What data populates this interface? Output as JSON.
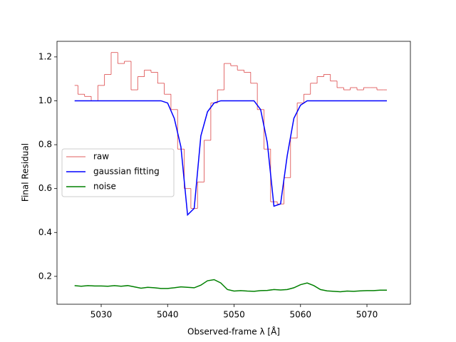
{
  "chart_data": {
    "type": "line",
    "xlabel": "Observed-frame λ [Å]",
    "ylabel": "Final Residual",
    "x": [
      5026,
      5027,
      5028,
      5029,
      5030,
      5031,
      5032,
      5033,
      5034,
      5035,
      5036,
      5037,
      5038,
      5039,
      5040,
      5041,
      5042,
      5043,
      5044,
      5045,
      5046,
      5047,
      5048,
      5049,
      5050,
      5051,
      5052,
      5053,
      5054,
      5055,
      5056,
      5057,
      5058,
      5059,
      5060,
      5061,
      5062,
      5063,
      5064,
      5065,
      5066,
      5067,
      5068,
      5069,
      5070,
      5071,
      5072,
      5073
    ],
    "series": [
      {
        "name": "raw",
        "color": "#d62728",
        "drawstyle": "steps-mid",
        "values": [
          1.07,
          1.03,
          1.02,
          1.0,
          1.07,
          1.12,
          1.22,
          1.17,
          1.18,
          1.05,
          1.11,
          1.14,
          1.13,
          1.08,
          1.03,
          0.96,
          0.78,
          0.6,
          0.51,
          0.63,
          0.82,
          0.99,
          1.05,
          1.17,
          1.16,
          1.14,
          1.13,
          1.08,
          0.96,
          0.78,
          0.54,
          0.53,
          0.65,
          0.83,
          0.99,
          1.03,
          1.08,
          1.11,
          1.12,
          1.09,
          1.06,
          1.05,
          1.06,
          1.05,
          1.06,
          1.06,
          1.05,
          1.05
        ]
      },
      {
        "name": "gaussian fitting",
        "color": "#0000ff",
        "values": [
          1.0,
          1.0,
          1.0,
          1.0,
          1.0,
          1.0,
          1.0,
          1.0,
          1.0,
          1.0,
          1.0,
          1.0,
          1.0,
          1.0,
          0.99,
          0.92,
          0.79,
          0.48,
          0.51,
          0.84,
          0.95,
          0.99,
          1.0,
          1.0,
          1.0,
          1.0,
          1.0,
          1.0,
          0.96,
          0.81,
          0.52,
          0.53,
          0.75,
          0.92,
          0.98,
          1.0,
          1.0,
          1.0,
          1.0,
          1.0,
          1.0,
          1.0,
          1.0,
          1.0,
          1.0,
          1.0,
          1.0,
          1.0
        ]
      },
      {
        "name": "noise",
        "color": "#008000",
        "values": [
          0.158,
          0.155,
          0.158,
          0.156,
          0.156,
          0.155,
          0.158,
          0.155,
          0.158,
          0.152,
          0.146,
          0.15,
          0.148,
          0.145,
          0.145,
          0.148,
          0.152,
          0.15,
          0.148,
          0.16,
          0.18,
          0.185,
          0.17,
          0.14,
          0.133,
          0.135,
          0.133,
          0.132,
          0.135,
          0.136,
          0.14,
          0.138,
          0.14,
          0.148,
          0.162,
          0.17,
          0.158,
          0.14,
          0.134,
          0.132,
          0.13,
          0.133,
          0.132,
          0.134,
          0.135,
          0.135,
          0.137,
          0.137
        ]
      }
    ],
    "xlim": [
      5023.35,
      5076.54
    ],
    "xticks": [
      5030,
      5040,
      5050,
      5060,
      5070
    ],
    "ylim": [
      0.073,
      1.271
    ],
    "yticks": [
      0.2,
      0.4,
      0.6,
      0.8,
      {
        "value": 1,
        "label": "1.0"
      },
      1.2
    ],
    "legend": "center left"
  }
}
